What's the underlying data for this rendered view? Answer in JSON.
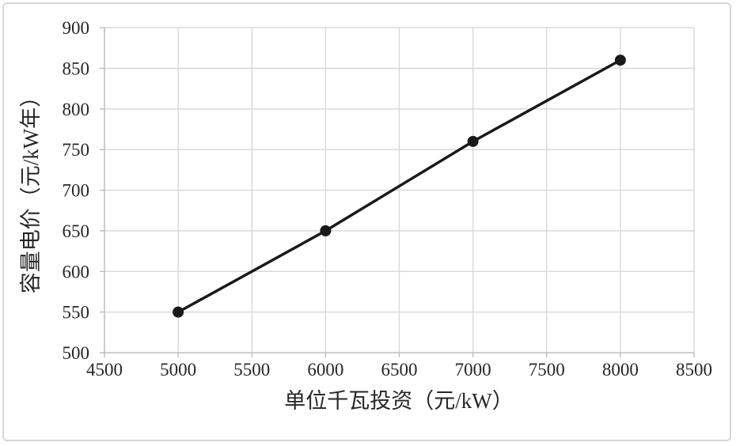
{
  "chart_data": {
    "type": "line",
    "title": "",
    "xlabel": "单位千瓦投资（元/kW）",
    "ylabel": "容量电价（元/kW年）",
    "x": [
      5000,
      6000,
      7000,
      8000
    ],
    "y": [
      550,
      650,
      760,
      860
    ],
    "xlim": [
      4500,
      8500
    ],
    "ylim": [
      500,
      900
    ],
    "x_ticks": [
      4500,
      5000,
      5500,
      6000,
      6500,
      7000,
      7500,
      8000,
      8500
    ],
    "y_ticks": [
      500,
      550,
      600,
      650,
      700,
      750,
      800,
      850,
      900
    ],
    "grid": true,
    "legend": "none",
    "marker": "circle",
    "colors": {
      "line": "#1a1a1a",
      "marker": "#1a1a1a",
      "gridline": "#d9d9d9",
      "axis_line": "#bdbdbd",
      "tick_mark": "#bdbdbd",
      "text": "#262626",
      "frame_border": "#d7d7d7",
      "background": "#ffffff"
    }
  }
}
